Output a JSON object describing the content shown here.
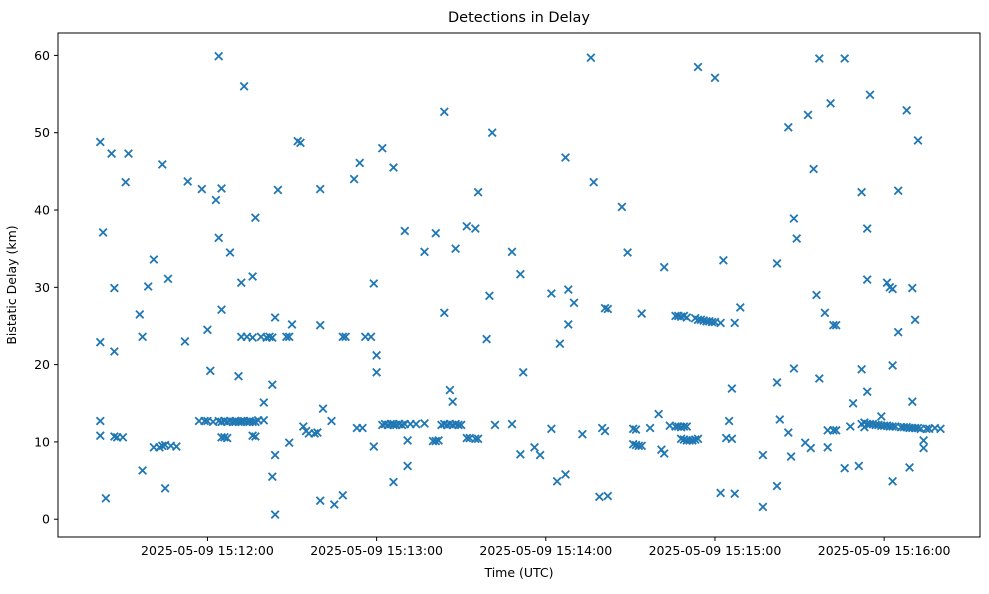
{
  "figure": {
    "title": "Detections in Delay",
    "xlabel": "Time (UTC)",
    "ylabel": "Bistatic Delay (km)"
  },
  "chart_data": {
    "type": "scatter",
    "title": "Detections in Delay",
    "xlabel": "Time (UTC)",
    "ylabel": "Bistatic Delay (km)",
    "marker": "x",
    "marker_color": "#1f77b4",
    "grid": false,
    "legend": "none",
    "x_unit": "seconds after 2025-05-09 15:11:00 UTC",
    "xlim": [
      7,
      334
    ],
    "ylim": [
      -2.3,
      62.9
    ],
    "x_ticks": [
      {
        "t": 60,
        "label": "2025-05-09 15:12:00"
      },
      {
        "t": 120,
        "label": "2025-05-09 15:13:00"
      },
      {
        "t": 180,
        "label": "2025-05-09 15:14:00"
      },
      {
        "t": 240,
        "label": "2025-05-09 15:15:00"
      },
      {
        "t": 300,
        "label": "2025-05-09 15:16:00"
      }
    ],
    "y_ticks": [
      0,
      10,
      20,
      30,
      40,
      50,
      60
    ],
    "points": [
      [
        64,
        59.9
      ],
      [
        73,
        56.0
      ],
      [
        22,
        48.8
      ],
      [
        26,
        47.3
      ],
      [
        32,
        47.3
      ],
      [
        44,
        45.9
      ],
      [
        31,
        43.6
      ],
      [
        53,
        43.7
      ],
      [
        58,
        42.7
      ],
      [
        65,
        42.8
      ],
      [
        63,
        41.3
      ],
      [
        85,
        42.6
      ],
      [
        77,
        39.0
      ],
      [
        23,
        37.1
      ],
      [
        64,
        36.4
      ],
      [
        68,
        34.5
      ],
      [
        41,
        33.6
      ],
      [
        46,
        31.1
      ],
      [
        76,
        31.4
      ],
      [
        72,
        30.6
      ],
      [
        144,
        52.7
      ],
      [
        161,
        50.0
      ],
      [
        92,
        48.9
      ],
      [
        93,
        48.7
      ],
      [
        122,
        48.0
      ],
      [
        114,
        46.1
      ],
      [
        126,
        45.5
      ],
      [
        112,
        44.0
      ],
      [
        100,
        42.7
      ],
      [
        156,
        42.3
      ],
      [
        130,
        37.3
      ],
      [
        141,
        37.0
      ],
      [
        152,
        37.9
      ],
      [
        155,
        37.6
      ],
      [
        137,
        34.6
      ],
      [
        148,
        35.0
      ],
      [
        168,
        34.6
      ],
      [
        119,
        30.5
      ],
      [
        196,
        59.7
      ],
      [
        234,
        58.5
      ],
      [
        240,
        57.1
      ],
      [
        187,
        46.8
      ],
      [
        197,
        43.6
      ],
      [
        207,
        40.4
      ],
      [
        209,
        34.5
      ],
      [
        222,
        32.6
      ],
      [
        243,
        33.5
      ],
      [
        171,
        31.7
      ],
      [
        277,
        59.6
      ],
      [
        286,
        59.6
      ],
      [
        295,
        54.9
      ],
      [
        281,
        53.8
      ],
      [
        273,
        52.3
      ],
      [
        266,
        50.7
      ],
      [
        308,
        52.9
      ],
      [
        312,
        49.0
      ],
      [
        275,
        45.3
      ],
      [
        292,
        42.3
      ],
      [
        305,
        42.5
      ],
      [
        268,
        38.9
      ],
      [
        294,
        37.6
      ],
      [
        269,
        36.3
      ],
      [
        262,
        33.1
      ],
      [
        294,
        31.0
      ],
      [
        301,
        30.6
      ],
      [
        302,
        30.0
      ],
      [
        303,
        29.8
      ],
      [
        310,
        29.9
      ],
      [
        27,
        29.9
      ],
      [
        39,
        30.1
      ],
      [
        36,
        26.5
      ],
      [
        65,
        27.1
      ],
      [
        84,
        26.1
      ],
      [
        60,
        24.5
      ],
      [
        37,
        23.6
      ],
      [
        22,
        22.9
      ],
      [
        27,
        21.7
      ],
      [
        52,
        23.0
      ],
      [
        72,
        23.6
      ],
      [
        74,
        23.6
      ],
      [
        76,
        23.5
      ],
      [
        79,
        23.6
      ],
      [
        81,
        23.5
      ],
      [
        82,
        23.6
      ],
      [
        83,
        23.5
      ],
      [
        88,
        23.6
      ],
      [
        89,
        23.6
      ],
      [
        61,
        19.2
      ],
      [
        71,
        18.5
      ],
      [
        83,
        17.4
      ],
      [
        80,
        15.1
      ],
      [
        22,
        12.7
      ],
      [
        22,
        10.8
      ],
      [
        27,
        10.7
      ],
      [
        28,
        10.6
      ],
      [
        30,
        10.6
      ],
      [
        57,
        12.7
      ],
      [
        59,
        12.7
      ],
      [
        60,
        12.7
      ],
      [
        62,
        12.6
      ],
      [
        64,
        12.7
      ],
      [
        65,
        12.6
      ],
      [
        66,
        12.7
      ],
      [
        67,
        12.6
      ],
      [
        68,
        12.7
      ],
      [
        69,
        12.6
      ],
      [
        70,
        12.7
      ],
      [
        70,
        12.6
      ],
      [
        71,
        12.6
      ],
      [
        72,
        12.7
      ],
      [
        72,
        12.6
      ],
      [
        73,
        12.7
      ],
      [
        74,
        12.6
      ],
      [
        75,
        12.7
      ],
      [
        75,
        12.6
      ],
      [
        76,
        12.6
      ],
      [
        77,
        12.6
      ],
      [
        78,
        12.8
      ],
      [
        80,
        12.8
      ],
      [
        65,
        10.6
      ],
      [
        66,
        10.6
      ],
      [
        67,
        10.5
      ],
      [
        76,
        10.8
      ],
      [
        77,
        10.7
      ],
      [
        89,
        9.9
      ],
      [
        41,
        9.3
      ],
      [
        43,
        9.3
      ],
      [
        44,
        9.5
      ],
      [
        45,
        9.6
      ],
      [
        47,
        9.5
      ],
      [
        49,
        9.4
      ],
      [
        84,
        8.3
      ],
      [
        83,
        5.5
      ],
      [
        37,
        6.3
      ],
      [
        45,
        4.0
      ],
      [
        24,
        2.7
      ],
      [
        84,
        0.6
      ],
      [
        160,
        28.9
      ],
      [
        144,
        26.7
      ],
      [
        90,
        25.2
      ],
      [
        100,
        25.1
      ],
      [
        108,
        23.6
      ],
      [
        109,
        23.6
      ],
      [
        116,
        23.6
      ],
      [
        118,
        23.6
      ],
      [
        159,
        23.3
      ],
      [
        120,
        21.2
      ],
      [
        120,
        19.0
      ],
      [
        172,
        19.0
      ],
      [
        146,
        16.7
      ],
      [
        147,
        15.2
      ],
      [
        101,
        14.3
      ],
      [
        104,
        12.7
      ],
      [
        94,
        12.0
      ],
      [
        95,
        11.4
      ],
      [
        96,
        11.1
      ],
      [
        98,
        11.1
      ],
      [
        99,
        11.2
      ],
      [
        113,
        11.8
      ],
      [
        115,
        11.8
      ],
      [
        122,
        12.2
      ],
      [
        123,
        12.3
      ],
      [
        124,
        12.2
      ],
      [
        125,
        12.3
      ],
      [
        126,
        12.2
      ],
      [
        126,
        12.3
      ],
      [
        127,
        12.2
      ],
      [
        128,
        12.3
      ],
      [
        129,
        12.2
      ],
      [
        130,
        12.3
      ],
      [
        132,
        12.3
      ],
      [
        134,
        12.3
      ],
      [
        137,
        12.4
      ],
      [
        143,
        12.2
      ],
      [
        144,
        12.3
      ],
      [
        145,
        12.2
      ],
      [
        146,
        12.3
      ],
      [
        147,
        12.2
      ],
      [
        148,
        12.3
      ],
      [
        149,
        12.2
      ],
      [
        150,
        12.2
      ],
      [
        162,
        12.2
      ],
      [
        168,
        12.3
      ],
      [
        131,
        10.2
      ],
      [
        140,
        10.1
      ],
      [
        141,
        10.1
      ],
      [
        142,
        10.2
      ],
      [
        152,
        10.5
      ],
      [
        153,
        10.5
      ],
      [
        155,
        10.4
      ],
      [
        156,
        10.4
      ],
      [
        171,
        8.4
      ],
      [
        119,
        9.4
      ],
      [
        131,
        6.9
      ],
      [
        126,
        4.8
      ],
      [
        108,
        3.1
      ],
      [
        100,
        2.4
      ],
      [
        105,
        1.9
      ],
      [
        182,
        29.2
      ],
      [
        188,
        29.7
      ],
      [
        190,
        28.0
      ],
      [
        201,
        27.3
      ],
      [
        202,
        27.2
      ],
      [
        214,
        26.6
      ],
      [
        226,
        26.3
      ],
      [
        227,
        26.3
      ],
      [
        228,
        26.2
      ],
      [
        229,
        26.3
      ],
      [
        230,
        26.1
      ],
      [
        233,
        26.0
      ],
      [
        234,
        25.8
      ],
      [
        235,
        25.8
      ],
      [
        236,
        25.7
      ],
      [
        237,
        25.6
      ],
      [
        238,
        25.6
      ],
      [
        239,
        25.5
      ],
      [
        240,
        25.5
      ],
      [
        242,
        25.4
      ],
      [
        249,
        27.4
      ],
      [
        247,
        25.4
      ],
      [
        188,
        25.2
      ],
      [
        185,
        22.7
      ],
      [
        246,
        16.9
      ],
      [
        220,
        13.6
      ],
      [
        245,
        12.7
      ],
      [
        182,
        11.7
      ],
      [
        193,
        11.0
      ],
      [
        200,
        11.8
      ],
      [
        201,
        11.4
      ],
      [
        211,
        11.7
      ],
      [
        212,
        11.6
      ],
      [
        217,
        11.8
      ],
      [
        224,
        12.1
      ],
      [
        226,
        12.0
      ],
      [
        227,
        12.0
      ],
      [
        228,
        11.9
      ],
      [
        229,
        12.0
      ],
      [
        230,
        12.0
      ],
      [
        228,
        10.4
      ],
      [
        229,
        10.3
      ],
      [
        230,
        10.2
      ],
      [
        231,
        10.2
      ],
      [
        232,
        10.2
      ],
      [
        233,
        10.3
      ],
      [
        234,
        10.4
      ],
      [
        244,
        10.5
      ],
      [
        246,
        10.4
      ],
      [
        211,
        9.7
      ],
      [
        212,
        9.6
      ],
      [
        213,
        9.5
      ],
      [
        214,
        9.5
      ],
      [
        222,
        8.5
      ],
      [
        221,
        9.0
      ],
      [
        176,
        9.3
      ],
      [
        178,
        8.3
      ],
      [
        187,
        5.8
      ],
      [
        184,
        4.9
      ],
      [
        199,
        2.9
      ],
      [
        202,
        3.0
      ],
      [
        242,
        3.4
      ],
      [
        247,
        3.3
      ],
      [
        276,
        29.0
      ],
      [
        279,
        26.7
      ],
      [
        282,
        25.1
      ],
      [
        283,
        25.1
      ],
      [
        311,
        25.8
      ],
      [
        305,
        24.2
      ],
      [
        268,
        19.5
      ],
      [
        262,
        17.7
      ],
      [
        277,
        18.2
      ],
      [
        292,
        19.4
      ],
      [
        303,
        19.9
      ],
      [
        294,
        16.5
      ],
      [
        289,
        15.0
      ],
      [
        310,
        15.2
      ],
      [
        263,
        12.9
      ],
      [
        266,
        11.2
      ],
      [
        299,
        13.3
      ],
      [
        288,
        12.0
      ],
      [
        292,
        12.3
      ],
      [
        293,
        12.5
      ],
      [
        293,
        11.9
      ],
      [
        294,
        12.3
      ],
      [
        295,
        12.3
      ],
      [
        296,
        12.3
      ],
      [
        297,
        12.2
      ],
      [
        298,
        12.2
      ],
      [
        299,
        12.1
      ],
      [
        300,
        12.1
      ],
      [
        301,
        12.1
      ],
      [
        302,
        12.0
      ],
      [
        303,
        12.0
      ],
      [
        304,
        12.0
      ],
      [
        306,
        11.9
      ],
      [
        307,
        11.9
      ],
      [
        308,
        11.9
      ],
      [
        309,
        11.8
      ],
      [
        310,
        11.8
      ],
      [
        311,
        11.8
      ],
      [
        312,
        11.8
      ],
      [
        313,
        11.7
      ],
      [
        315,
        11.7
      ],
      [
        316,
        11.7
      ],
      [
        318,
        11.8
      ],
      [
        320,
        11.7
      ],
      [
        280,
        11.5
      ],
      [
        282,
        11.5
      ],
      [
        283,
        11.5
      ],
      [
        314,
        10.2
      ],
      [
        314,
        9.2
      ],
      [
        272,
        9.9
      ],
      [
        274,
        9.2
      ],
      [
        280,
        9.3
      ],
      [
        257,
        8.3
      ],
      [
        267,
        8.1
      ],
      [
        286,
        6.6
      ],
      [
        291,
        6.9
      ],
      [
        309,
        6.7
      ],
      [
        303,
        4.9
      ],
      [
        262,
        4.3
      ],
      [
        257,
        1.6
      ]
    ]
  }
}
